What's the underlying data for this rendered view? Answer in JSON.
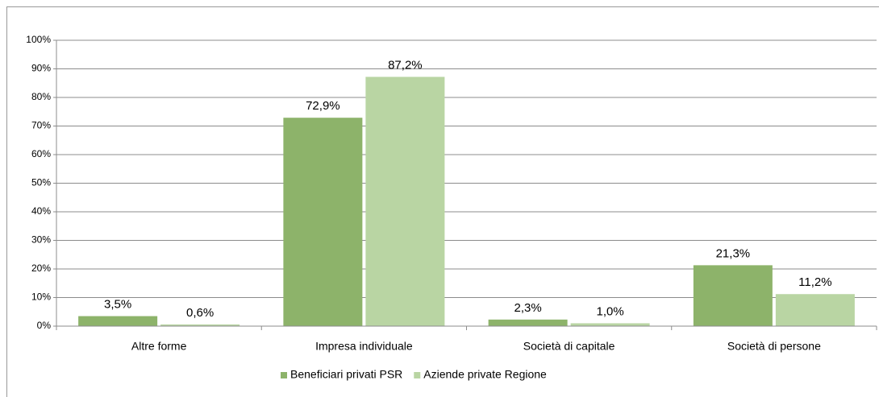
{
  "chart_data": {
    "type": "bar",
    "categories": [
      "Altre forme",
      "Impresa individuale",
      "Società di capitale",
      "Società di persone"
    ],
    "series": [
      {
        "name": "Beneficiari privati PSR",
        "color": "#8db36a",
        "values": [
          3.5,
          72.9,
          2.3,
          21.3
        ],
        "value_labels": [
          "3,5%",
          "72,9%",
          "2,3%",
          "21,3%"
        ]
      },
      {
        "name": "Aziende private Regione",
        "color": "#b9d5a3",
        "values": [
          0.6,
          87.2,
          1.0,
          11.2
        ],
        "value_labels": [
          "0,6%",
          "87,2%",
          "1,0%",
          "11,2%"
        ]
      }
    ],
    "ylim": [
      0,
      100
    ],
    "yticks": [
      {
        "value": 0,
        "label": "0%"
      },
      {
        "value": 10,
        "label": "10%"
      },
      {
        "value": 20,
        "label": "20%"
      },
      {
        "value": 30,
        "label": "30%"
      },
      {
        "value": 40,
        "label": "40%"
      },
      {
        "value": 50,
        "label": "50%"
      },
      {
        "value": 60,
        "label": "60%"
      },
      {
        "value": 70,
        "label": "70%"
      },
      {
        "value": 80,
        "label": "80%"
      },
      {
        "value": 90,
        "label": "90%"
      },
      {
        "value": 100,
        "label": "100%"
      }
    ],
    "grid": true,
    "legend": "bottom"
  }
}
